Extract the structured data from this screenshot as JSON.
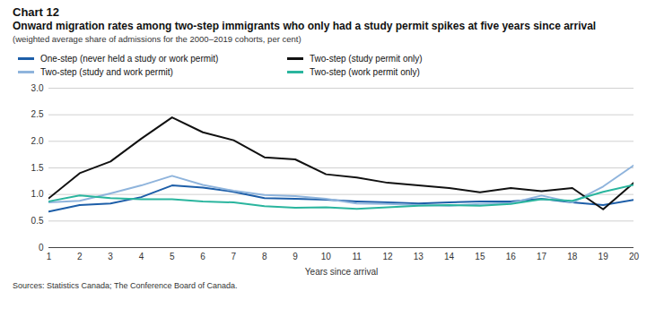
{
  "chart_data": {
    "type": "line",
    "label": "Chart 12",
    "title": "Onward migration rates among two-step immigrants who only had a study permit spikes at five years since arrival",
    "subtitle": "(weighted average share of admissions for the 2000–2019 cohorts, per cent)",
    "x_label": "Years since arrival",
    "caption": "Sources: Statistics Canada; The Conference Board of Canada.",
    "x": [
      1,
      2,
      3,
      4,
      5,
      6,
      7,
      8,
      9,
      10,
      11,
      12,
      13,
      14,
      15,
      16,
      17,
      18,
      19,
      20
    ],
    "xlim": [
      1,
      20
    ],
    "xticks": [
      1,
      2,
      3,
      4,
      5,
      6,
      7,
      8,
      9,
      10,
      11,
      12,
      13,
      14,
      15,
      16,
      17,
      18,
      19,
      20
    ],
    "ylim": [
      0,
      3
    ],
    "yticks": [
      0,
      0.5,
      {
        "value": 1,
        "label": "1.0"
      },
      1.5,
      {
        "value": 2,
        "label": "2.0"
      },
      2.5,
      {
        "value": 3,
        "label": "3.0"
      }
    ],
    "grid": true,
    "legend": "top",
    "series": [
      {
        "name": "One-step (never held a study or work permit)",
        "color": "#1d5ea8",
        "values": [
          0.68,
          0.8,
          0.83,
          0.95,
          1.17,
          1.13,
          1.05,
          0.93,
          0.92,
          0.9,
          0.87,
          0.85,
          0.83,
          0.85,
          0.87,
          0.87,
          0.92,
          0.85,
          0.8,
          0.9
        ]
      },
      {
        "name": "Two-step (study and work permit)",
        "color": "#8fb4dc",
        "values": [
          0.85,
          0.88,
          1.02,
          1.17,
          1.35,
          1.18,
          1.07,
          0.99,
          0.97,
          0.92,
          0.83,
          0.82,
          0.8,
          0.79,
          0.82,
          0.84,
          0.98,
          0.85,
          1.15,
          1.55
        ]
      },
      {
        "name": "Two-step (study permit only)",
        "color": "#111111",
        "values": [
          0.93,
          1.4,
          1.62,
          2.05,
          2.45,
          2.17,
          2.02,
          1.7,
          1.66,
          1.38,
          1.32,
          1.22,
          1.17,
          1.12,
          1.04,
          1.12,
          1.06,
          1.12,
          0.72,
          1.22
        ]
      },
      {
        "name": "Two-step (work permit only)",
        "color": "#2ab59e",
        "values": [
          0.87,
          0.98,
          0.93,
          0.91,
          0.91,
          0.87,
          0.85,
          0.78,
          0.75,
          0.76,
          0.73,
          0.76,
          0.79,
          0.8,
          0.79,
          0.82,
          0.91,
          0.88,
          1.05,
          1.18
        ]
      }
    ]
  }
}
